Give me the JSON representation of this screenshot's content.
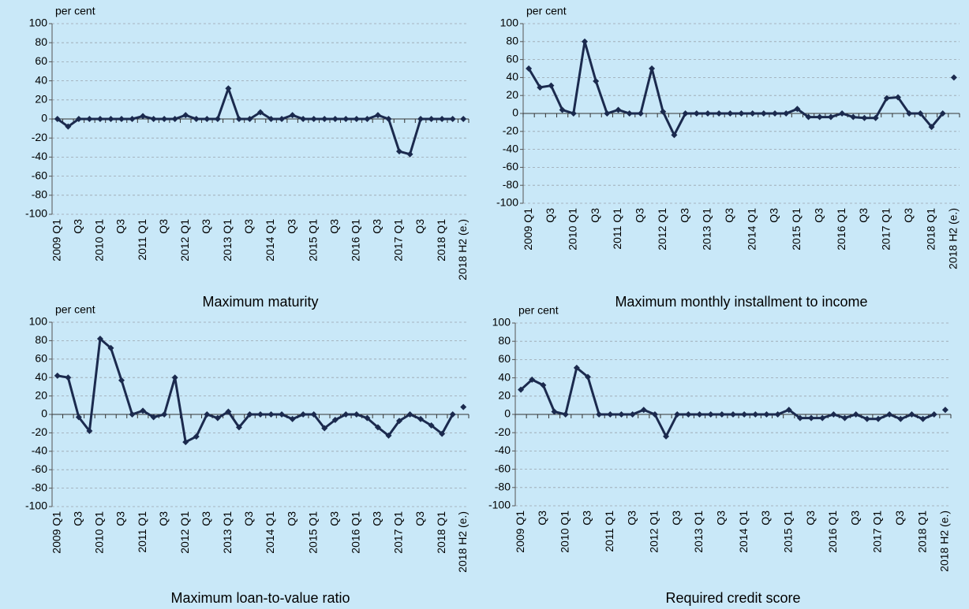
{
  "chart_data": [
    {
      "type": "line",
      "title": "Maximum maturity",
      "y_label": "per cent",
      "categories": [
        "2009 Q1",
        null,
        "Q3",
        null,
        "2010 Q1",
        null,
        "Q3",
        null,
        "2011 Q1",
        null,
        "Q3",
        null,
        "2012 Q1",
        null,
        "Q3",
        null,
        "2013 Q1",
        null,
        "Q3",
        null,
        "2014 Q1",
        null,
        "Q3",
        null,
        "2015 Q1",
        null,
        "Q3",
        null,
        "2016 Q1",
        null,
        "Q3",
        null,
        "2017 Q1",
        null,
        "Q3",
        null,
        "2018 Q1",
        null,
        "2018 H2 (e.)"
      ],
      "series": [
        {
          "color": "#1b2a4e",
          "values": [
            0,
            -8,
            0,
            0,
            0,
            0,
            0,
            0,
            3,
            0,
            0,
            0,
            4,
            0,
            0,
            0,
            32,
            0,
            0,
            7,
            0,
            0,
            4,
            0,
            0,
            0,
            0,
            0,
            0,
            0,
            4,
            0,
            -34,
            -37,
            0,
            0,
            0,
            0,
            null
          ]
        },
        {
          "color": "#1b2a4e",
          "line": false,
          "values": [
            null,
            null,
            null,
            null,
            null,
            null,
            null,
            null,
            null,
            null,
            null,
            null,
            null,
            null,
            null,
            null,
            null,
            null,
            null,
            null,
            null,
            null,
            null,
            null,
            null,
            null,
            null,
            null,
            null,
            null,
            null,
            null,
            null,
            null,
            null,
            null,
            null,
            null,
            0
          ]
        }
      ],
      "ylim": [
        -100,
        100
      ],
      "yticks": [
        -100,
        -80,
        -60,
        -40,
        -20,
        0,
        20,
        40,
        60,
        80,
        100
      ],
      "grid": true
    },
    {
      "type": "line",
      "title": "Maximum monthly installment to income",
      "y_label": "per cent",
      "categories": [
        "2009 Q1",
        null,
        "Q3",
        null,
        "2010 Q1",
        null,
        "Q3",
        null,
        "2011 Q1",
        null,
        "Q3",
        null,
        "2012 Q1",
        null,
        "Q3",
        null,
        "2013 Q1",
        null,
        "Q3",
        null,
        "2014 Q1",
        null,
        "Q3",
        null,
        "2015 Q1",
        null,
        "Q3",
        null,
        "2016 Q1",
        null,
        "Q3",
        null,
        "2017 Q1",
        null,
        "Q3",
        null,
        "2018 Q1",
        null,
        "2018 H2 (e.)"
      ],
      "series": [
        {
          "color": "#1b2a4e",
          "values": [
            50,
            29,
            31,
            4,
            0,
            80,
            36,
            0,
            4,
            0,
            0,
            50,
            2,
            -24,
            0,
            0,
            0,
            0,
            0,
            0,
            0,
            0,
            0,
            0,
            5,
            -4,
            -4,
            -4,
            0,
            -4,
            -5,
            -5,
            17,
            18,
            0,
            0,
            -15,
            0,
            null
          ]
        },
        {
          "color": "#1b2a4e",
          "line": false,
          "values": [
            null,
            null,
            null,
            null,
            null,
            null,
            null,
            null,
            null,
            null,
            null,
            null,
            null,
            null,
            null,
            null,
            null,
            null,
            null,
            null,
            null,
            null,
            null,
            null,
            null,
            null,
            null,
            null,
            null,
            null,
            null,
            null,
            null,
            null,
            null,
            null,
            null,
            null,
            40
          ]
        }
      ],
      "ylim": [
        -100,
        100
      ],
      "yticks": [
        -100,
        -80,
        -60,
        -40,
        -20,
        0,
        20,
        40,
        60,
        80,
        100
      ],
      "grid": true
    },
    {
      "type": "line",
      "title": "Maximum loan-to-value ratio",
      "y_label": "per cent",
      "categories": [
        "2009 Q1",
        null,
        "Q3",
        null,
        "2010 Q1",
        null,
        "Q3",
        null,
        "2011 Q1",
        null,
        "Q3",
        null,
        "2012 Q1",
        null,
        "Q3",
        null,
        "2013 Q1",
        null,
        "Q3",
        null,
        "2014 Q1",
        null,
        "Q3",
        null,
        "2015 Q1",
        null,
        "Q3",
        null,
        "2016 Q1",
        null,
        "Q3",
        null,
        "2017 Q1",
        null,
        "Q3",
        null,
        "2018 Q1",
        null,
        "2018 H2 (e.)"
      ],
      "series": [
        {
          "color": "#1b2a4e",
          "values": [
            42,
            40,
            -3,
            -18,
            82,
            72,
            37,
            0,
            4,
            -3,
            0,
            40,
            -30,
            -24,
            0,
            -4,
            3,
            -14,
            0,
            0,
            0,
            0,
            -5,
            0,
            0,
            -15,
            -6,
            0,
            0,
            -4,
            -14,
            -23,
            -7,
            0,
            -5,
            -12,
            -21,
            0,
            null
          ]
        },
        {
          "color": "#1b2a4e",
          "line": false,
          "values": [
            null,
            null,
            null,
            null,
            null,
            null,
            null,
            null,
            null,
            null,
            null,
            null,
            null,
            null,
            null,
            null,
            null,
            null,
            null,
            null,
            null,
            null,
            null,
            null,
            null,
            null,
            null,
            null,
            null,
            null,
            null,
            null,
            null,
            null,
            null,
            null,
            null,
            null,
            8
          ]
        }
      ],
      "ylim": [
        -100,
        100
      ],
      "yticks": [
        -100,
        -80,
        -60,
        -40,
        -20,
        0,
        20,
        40,
        60,
        80,
        100
      ],
      "grid": true
    },
    {
      "type": "line",
      "title": "Required credit score",
      "y_label": "per cent",
      "categories": [
        "2009 Q1",
        null,
        "Q3",
        null,
        "2010 Q1",
        null,
        "Q3",
        null,
        "2011 Q1",
        null,
        "Q3",
        null,
        "2012 Q1",
        null,
        "Q3",
        null,
        "2013 Q1",
        null,
        "Q3",
        null,
        "2014 Q1",
        null,
        "Q3",
        null,
        "2015 Q1",
        null,
        "Q3",
        null,
        "2016 Q1",
        null,
        "Q3",
        null,
        "2017 Q1",
        null,
        "Q3",
        null,
        "2018 Q1",
        null,
        "2018 H2 (e.)"
      ],
      "series": [
        {
          "color": "#1b2a4e",
          "values": [
            27,
            38,
            32,
            3,
            0,
            51,
            41,
            0,
            0,
            0,
            0,
            5,
            0,
            -24,
            0,
            0,
            0,
            0,
            0,
            0,
            0,
            0,
            0,
            0,
            5,
            -4,
            -4,
            -4,
            0,
            -4,
            0,
            -5,
            -5,
            0,
            -5,
            0,
            -5,
            0,
            null
          ]
        },
        {
          "color": "#1b2a4e",
          "line": false,
          "values": [
            null,
            null,
            null,
            null,
            null,
            null,
            null,
            null,
            null,
            null,
            null,
            null,
            null,
            null,
            null,
            null,
            null,
            null,
            null,
            null,
            null,
            null,
            null,
            null,
            null,
            null,
            null,
            null,
            null,
            null,
            null,
            null,
            null,
            null,
            null,
            null,
            null,
            null,
            5
          ]
        }
      ],
      "ylim": [
        -100,
        100
      ],
      "yticks": [
        -100,
        -80,
        -60,
        -40,
        -20,
        0,
        20,
        40,
        60,
        80,
        100
      ],
      "grid": true
    }
  ]
}
